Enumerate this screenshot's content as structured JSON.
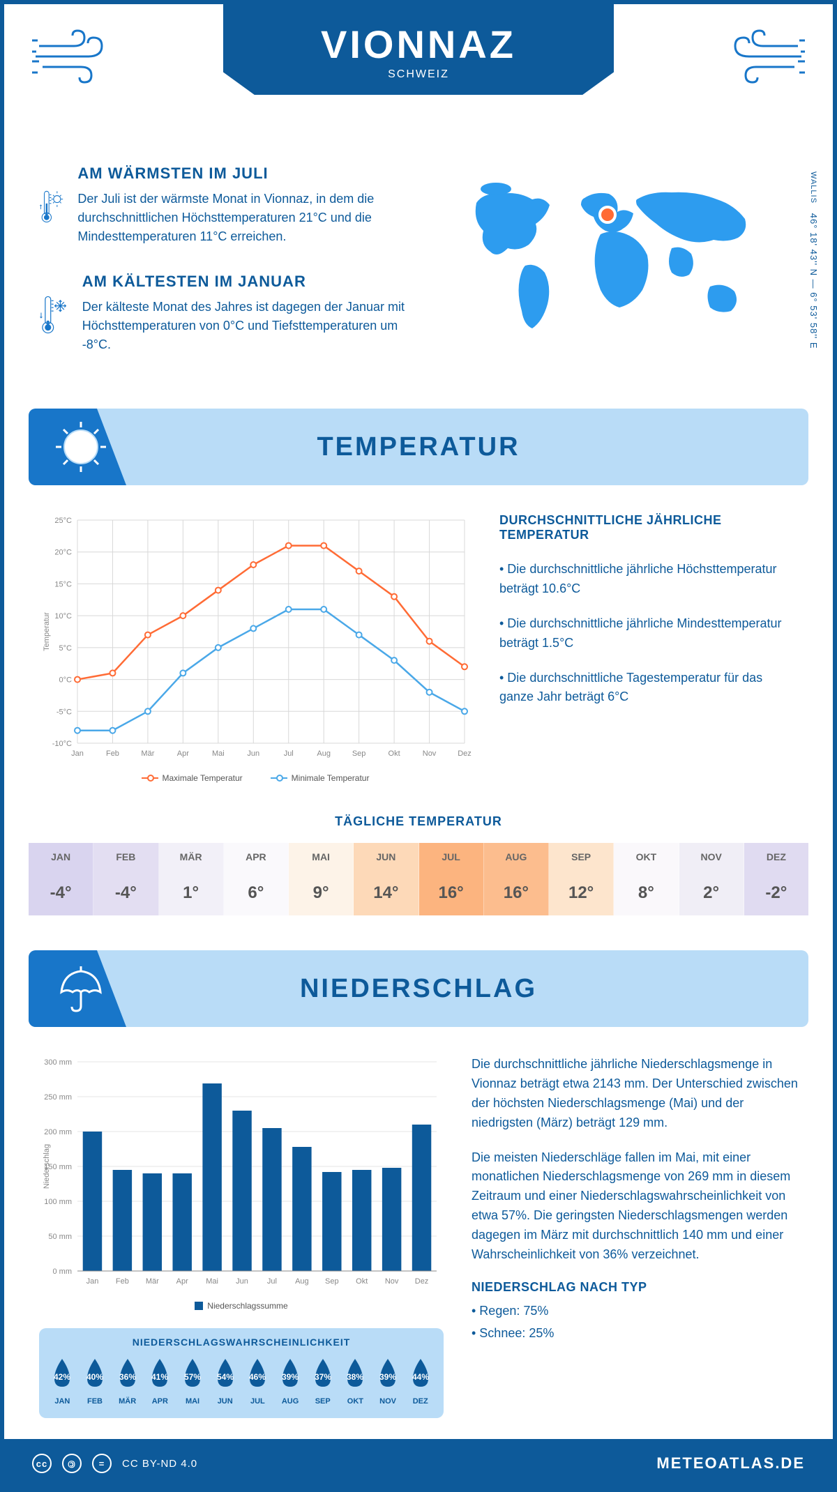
{
  "header": {
    "city": "VIONNAZ",
    "country": "SCHWEIZ",
    "region": "WALLIS",
    "coords": "46° 18' 43'' N — 6° 53' 58'' E"
  },
  "colors": {
    "primary": "#0d5a9a",
    "light_blue": "#b9dcf7",
    "mid_blue": "#1876c9",
    "accent_blue": "#2d9cef",
    "orange": "#ff6b35",
    "line_blue": "#4aa8e8"
  },
  "warmest": {
    "title": "AM WÄRMSTEN IM JULI",
    "text": "Der Juli ist der wärmste Monat in Vionnaz, in dem die durchschnittlichen Höchsttemperaturen 21°C und die Mindesttemperaturen 11°C erreichen."
  },
  "coldest": {
    "title": "AM KÄLTESTEN IM JANUAR",
    "text": "Der kälteste Monat des Jahres ist dagegen der Januar mit Höchsttemperaturen von 0°C und Tiefsttemperaturen um -8°C."
  },
  "temperature": {
    "section_title": "TEMPERATUR",
    "chart": {
      "type": "line",
      "months": [
        "Jan",
        "Feb",
        "Mär",
        "Apr",
        "Mai",
        "Jun",
        "Jul",
        "Aug",
        "Sep",
        "Okt",
        "Nov",
        "Dez"
      ],
      "max_values": [
        0,
        1,
        7,
        10,
        14,
        18,
        21,
        21,
        17,
        13,
        6,
        2
      ],
      "min_values": [
        -8,
        -8,
        -5,
        1,
        5,
        8,
        11,
        11,
        7,
        3,
        -2,
        -5
      ],
      "ylim": [
        -10,
        25
      ],
      "ytick_step": 5,
      "max_color": "#ff6b35",
      "min_color": "#4aa8e8",
      "grid_color": "#d8d8d8",
      "ylabel": "Temperatur",
      "legend_max": "Maximale Temperatur",
      "legend_min": "Minimale Temperatur"
    },
    "text_title": "DURCHSCHNITTLICHE JÄHRLICHE TEMPERATUR",
    "bullets": [
      "• Die durchschnittliche jährliche Höchsttemperatur beträgt 10.6°C",
      "• Die durchschnittliche jährliche Mindesttemperatur beträgt 1.5°C",
      "• Die durchschnittliche Tagestemperatur für das ganze Jahr beträgt 6°C"
    ],
    "daily_title": "TÄGLICHE TEMPERATUR",
    "daily": {
      "months": [
        "JAN",
        "FEB",
        "MÄR",
        "APR",
        "MAI",
        "JUN",
        "JUL",
        "AUG",
        "SEP",
        "OKT",
        "NOV",
        "DEZ"
      ],
      "values": [
        "-4°",
        "-4°",
        "1°",
        "6°",
        "9°",
        "14°",
        "16°",
        "16°",
        "12°",
        "8°",
        "2°",
        "-2°"
      ],
      "bg_colors": [
        "#d9d4ef",
        "#e3def2",
        "#f2f0f8",
        "#faf9fc",
        "#fdf3e8",
        "#fdd9b8",
        "#fcb47f",
        "#fcbd8e",
        "#fde5cd",
        "#faf8fb",
        "#f0eef6",
        "#e0dbf1"
      ]
    }
  },
  "precipitation": {
    "section_title": "NIEDERSCHLAG",
    "chart": {
      "type": "bar",
      "months": [
        "Jan",
        "Feb",
        "Mär",
        "Apr",
        "Mai",
        "Jun",
        "Jul",
        "Aug",
        "Sep",
        "Okt",
        "Nov",
        "Dez"
      ],
      "values": [
        200,
        145,
        140,
        140,
        269,
        230,
        205,
        178,
        142,
        145,
        148,
        210
      ],
      "ylim": [
        0,
        300
      ],
      "ytick_step": 50,
      "bar_color": "#0d5a9a",
      "ylabel": "Niederschlag",
      "legend": "Niederschlagssumme"
    },
    "text1": "Die durchschnittliche jährliche Niederschlagsmenge in Vionnaz beträgt etwa 2143 mm. Der Unterschied zwischen der höchsten Niederschlagsmenge (Mai) und der niedrigsten (März) beträgt 129 mm.",
    "text2": "Die meisten Niederschläge fallen im Mai, mit einer monatlichen Niederschlagsmenge von 269 mm in diesem Zeitraum und einer Niederschlagswahrscheinlichkeit von etwa 57%. Die geringsten Niederschlagsmengen werden dagegen im März mit durchschnittlich 140 mm und einer Wahrscheinlichkeit von 36% verzeichnet.",
    "type_title": "NIEDERSCHLAG NACH TYP",
    "type_bullets": [
      "• Regen: 75%",
      "• Schnee: 25%"
    ],
    "probability": {
      "title": "NIEDERSCHLAGSWAHRSCHEINLICHKEIT",
      "months": [
        "JAN",
        "FEB",
        "MÄR",
        "APR",
        "MAI",
        "JUN",
        "JUL",
        "AUG",
        "SEP",
        "OKT",
        "NOV",
        "DEZ"
      ],
      "values": [
        "42%",
        "40%",
        "36%",
        "41%",
        "57%",
        "54%",
        "46%",
        "39%",
        "37%",
        "38%",
        "39%",
        "44%"
      ],
      "drop_color": "#0d5a9a"
    }
  },
  "footer": {
    "license": "CC BY-ND 4.0",
    "site": "METEOATLAS.DE"
  }
}
